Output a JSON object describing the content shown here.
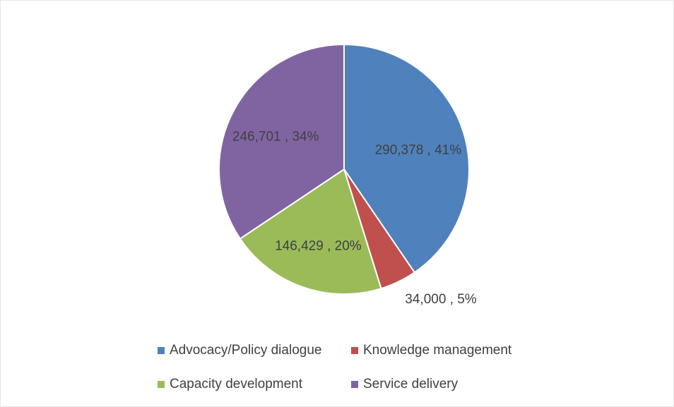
{
  "chart_data": {
    "type": "pie",
    "categories": [
      "Advocacy/Policy dialogue",
      "Knowledge management",
      "Capacity development",
      "Service delivery"
    ],
    "values": [
      290378,
      34000,
      146429,
      246701
    ],
    "value_labels": [
      "290,378 , 41%",
      "34,000 , 5%",
      "146,429 , 20%",
      "246,701 , 34%"
    ],
    "colors": [
      "#4f81bd",
      "#c0504d",
      "#9bbb59",
      "#8064a2"
    ],
    "legend": "bottom"
  }
}
